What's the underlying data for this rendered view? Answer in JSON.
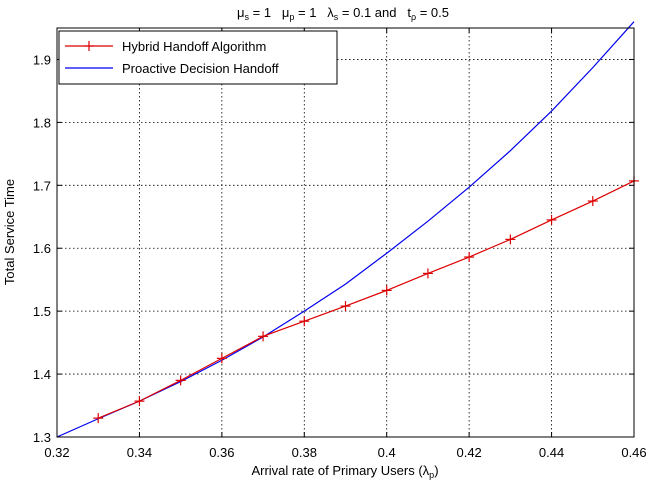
{
  "chart_data": {
    "type": "line",
    "title": "μs = 1   μp = 1   λs = 0.1 and   tρ = 0.5",
    "title_parts": {
      "mu_s": "μ",
      "mu_s_sub": "s",
      "mu_s_val": " = 1",
      "mu_p": "μ",
      "mu_p_sub": "p",
      "mu_p_val": " = 1",
      "lambda_s": "λ",
      "lambda_s_sub": "s",
      "lambda_s_val": " = 0.1 and",
      "t_rho": "t",
      "t_rho_sub": "ρ",
      "t_rho_val": " = 0.5"
    },
    "xlabel": "Arrival rate of Primary Users (λp)",
    "xlabel_parts": {
      "main": "Arrival rate of Primary Users (λ",
      "sub": "p",
      "close": ")"
    },
    "ylabel": "Total Service Time",
    "xlim": [
      0.32,
      0.46
    ],
    "ylim": [
      1.3,
      1.95
    ],
    "xticks": [
      0.32,
      0.34,
      0.36,
      0.38,
      0.4,
      0.42,
      0.44,
      0.46
    ],
    "xtick_labels": [
      "0.32",
      "0.34",
      "0.36",
      "0.38",
      "0.4",
      "0.42",
      "0.44",
      "0.46"
    ],
    "yticks": [
      1.3,
      1.4,
      1.5,
      1.6,
      1.7,
      1.8,
      1.9
    ],
    "ytick_labels": [
      "1.3",
      "1.4",
      "1.5",
      "1.6",
      "1.7",
      "1.8",
      "1.9"
    ],
    "grid": true,
    "legend_position": "top-left",
    "series": [
      {
        "name": "Hybrid Handoff Algorithm",
        "color": "#dd0000",
        "marker": "plus",
        "x": [
          0.33,
          0.34,
          0.35,
          0.36,
          0.37,
          0.38,
          0.39,
          0.4,
          0.41,
          0.42,
          0.43,
          0.44,
          0.45,
          0.46
        ],
        "y": [
          1.33,
          1.357,
          1.39,
          1.425,
          1.46,
          1.484,
          1.508,
          1.533,
          1.56,
          1.586,
          1.614,
          1.645,
          1.675,
          1.707
        ]
      },
      {
        "name": "Proactive Decision Handoff",
        "color": "#0000ee",
        "marker": "none",
        "x": [
          0.32,
          0.33,
          0.34,
          0.35,
          0.36,
          0.37,
          0.38,
          0.39,
          0.4,
          0.41,
          0.42,
          0.43,
          0.44,
          0.45,
          0.46
        ],
        "y": [
          1.3,
          1.329,
          1.357,
          1.388,
          1.422,
          1.459,
          1.5,
          1.543,
          1.592,
          1.643,
          1.697,
          1.755,
          1.818,
          1.887,
          1.96
        ]
      }
    ]
  }
}
